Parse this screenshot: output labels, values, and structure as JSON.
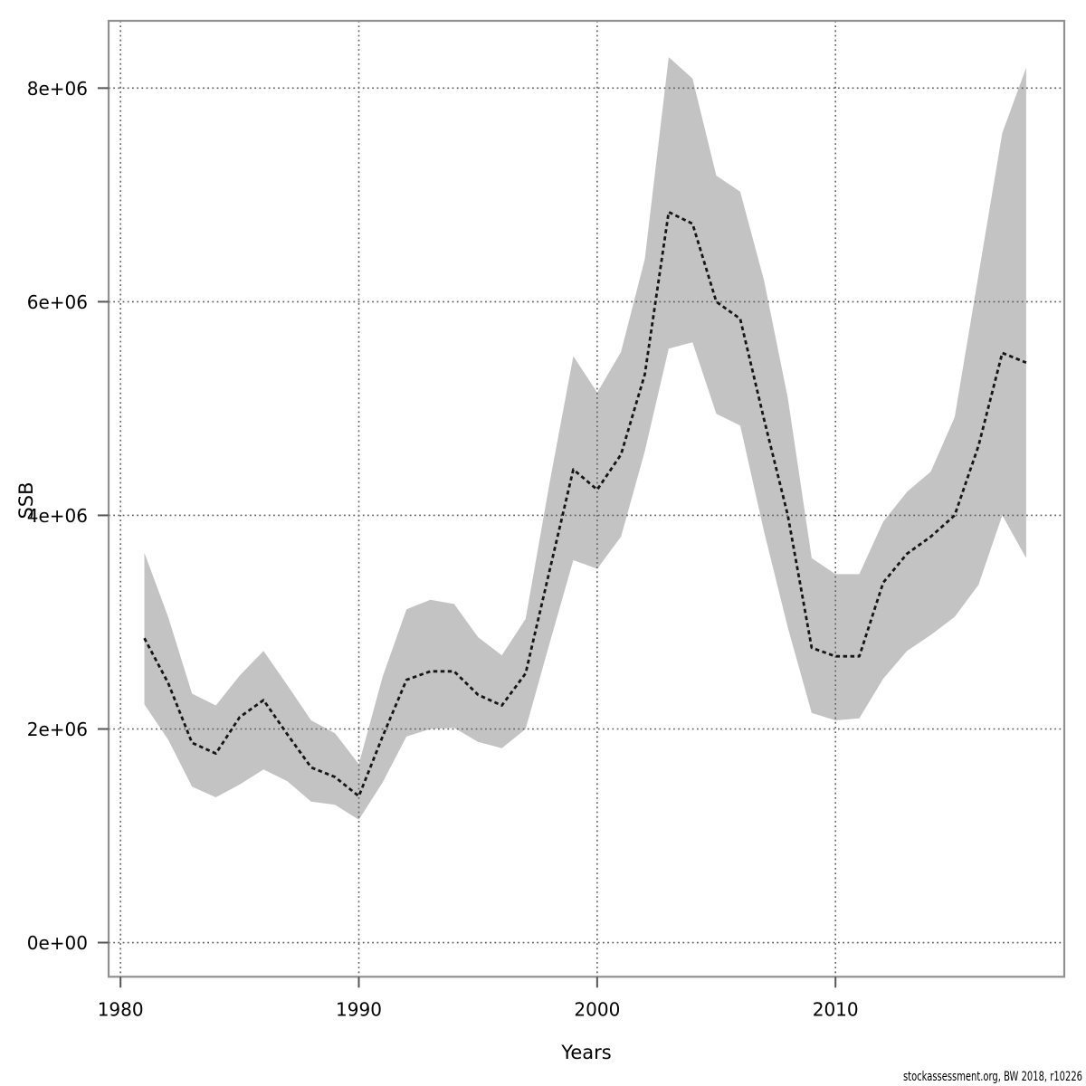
{
  "chart_data": {
    "type": "line",
    "title": "",
    "xlabel": "Years",
    "ylabel": "SSB",
    "grid": true,
    "legend": "none",
    "xlim": [
      1979.5,
      2019.6
    ],
    "ylim": [
      -320000,
      8630000
    ],
    "x_tick_values": [
      1980,
      1990,
      2000,
      2010
    ],
    "x_tick_labels": [
      "1980",
      "1990",
      "2000",
      "2010"
    ],
    "y_tick_values": [
      0,
      2000000,
      4000000,
      6000000,
      8000000
    ],
    "y_tick_labels": [
      "0e+00",
      "2e+06",
      "4e+06",
      "6e+06",
      "8e+06"
    ],
    "series": [
      {
        "name": "SSB estimate",
        "style": "dashed-line",
        "color": "#151515"
      },
      {
        "name": "confidence band",
        "style": "band",
        "color": "#c3c3c3"
      }
    ],
    "years": [
      1981,
      1982,
      1983,
      1984,
      1985,
      1986,
      1987,
      1988,
      1989,
      1990,
      1991,
      1992,
      1993,
      1994,
      1995,
      1996,
      1997,
      1998,
      1999,
      2000,
      2001,
      2002,
      2003,
      2004,
      2005,
      2006,
      2007,
      2008,
      2009,
      2010,
      2011,
      2012,
      2013,
      2014,
      2015,
      2016,
      2017,
      2018
    ],
    "estimate": [
      2850000,
      2430000,
      1870000,
      1770000,
      2110000,
      2270000,
      1950000,
      1640000,
      1550000,
      1370000,
      1930000,
      2460000,
      2540000,
      2540000,
      2320000,
      2220000,
      2520000,
      3480000,
      4430000,
      4240000,
      4570000,
      5320000,
      6840000,
      6730000,
      6000000,
      5840000,
      4900000,
      4000000,
      2760000,
      2680000,
      2680000,
      3370000,
      3640000,
      3800000,
      4000000,
      4650000,
      5520000,
      5430000
    ],
    "lower": [
      2230000,
      1900000,
      1460000,
      1360000,
      1480000,
      1620000,
      1510000,
      1320000,
      1290000,
      1150000,
      1500000,
      1930000,
      2000000,
      2010000,
      1880000,
      1820000,
      2000000,
      2800000,
      3580000,
      3500000,
      3800000,
      4600000,
      5560000,
      5620000,
      4950000,
      4840000,
      3850000,
      2950000,
      2150000,
      2080000,
      2100000,
      2470000,
      2730000,
      2880000,
      3050000,
      3350000,
      4000000,
      3600000
    ],
    "upper": [
      3650000,
      3050000,
      2330000,
      2220000,
      2500000,
      2730000,
      2410000,
      2080000,
      1960000,
      1670000,
      2490000,
      3120000,
      3210000,
      3170000,
      2860000,
      2690000,
      3030000,
      4300000,
      5490000,
      5150000,
      5530000,
      6400000,
      8290000,
      8090000,
      7180000,
      7030000,
      6200000,
      5100000,
      3600000,
      3450000,
      3450000,
      3940000,
      4220000,
      4410000,
      4920000,
      6250000,
      7580000,
      8190000
    ]
  },
  "footer": {
    "watermark": "stockassessment.org, BW 2018, r10226"
  },
  "colors": {
    "band": "#c3c3c3",
    "line": "#151515",
    "grid": "#5f5f5f",
    "border": "#909090",
    "tick": "#555555"
  }
}
